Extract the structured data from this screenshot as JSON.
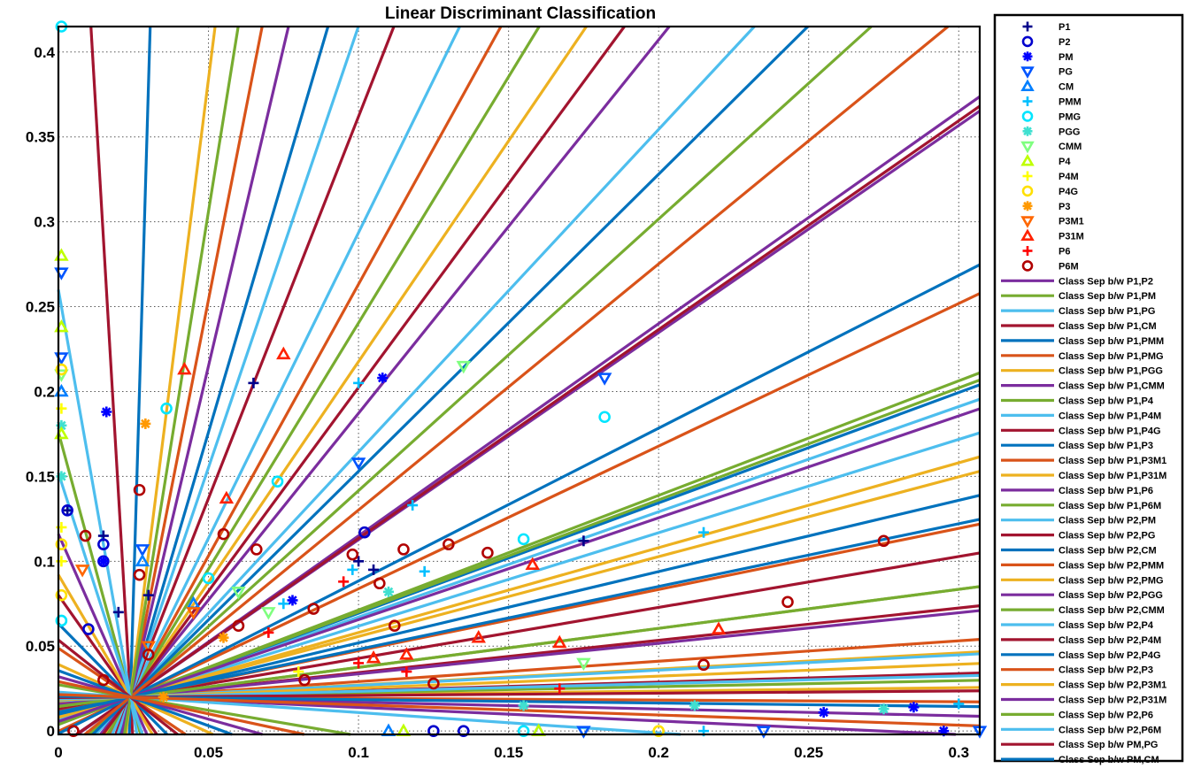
{
  "chart_data": {
    "type": "scatter",
    "title": "Linear Discriminant Classification",
    "xlabel": "",
    "ylabel": "",
    "xlim": [
      0,
      0.307
    ],
    "ylim": [
      -0.002,
      0.415
    ],
    "xticks": [
      "0",
      "0.05",
      "0.1",
      "0.15",
      "0.2",
      "0.25",
      "0.3"
    ],
    "yticks": [
      "0",
      "0.05",
      "0.1",
      "0.15",
      "0.2",
      "0.25",
      "0.3",
      "0.35",
      "0.4"
    ],
    "xtick_values": [
      0,
      0.05,
      0.1,
      0.15,
      0.2,
      0.25,
      0.3
    ],
    "ytick_values": [
      0,
      0.05,
      0.1,
      0.15,
      0.2,
      0.25,
      0.3,
      0.35,
      0.4
    ],
    "grid": true,
    "legend_position": "outside-right",
    "series": [
      {
        "name": "P1",
        "marker": "plus",
        "color": "#00008b",
        "points": [
          [
            0.003,
            0.13
          ],
          [
            0.015,
            0.115
          ],
          [
            0.065,
            0.205
          ],
          [
            0.1,
            0.1
          ],
          [
            0.105,
            0.095
          ],
          [
            0.175,
            0.112
          ],
          [
            0.03,
            0.08
          ],
          [
            0.02,
            0.07
          ]
        ]
      },
      {
        "name": "P2",
        "marker": "circle",
        "color": "#0000cd",
        "points": [
          [
            0.003,
            0.13
          ],
          [
            0.015,
            0.11
          ],
          [
            0.015,
            0.1
          ],
          [
            0.102,
            0.117
          ],
          [
            0.135,
            0.0
          ],
          [
            0.125,
            0.0
          ],
          [
            0.01,
            0.06
          ]
        ]
      },
      {
        "name": "PM",
        "marker": "star",
        "color": "#0000ff",
        "points": [
          [
            0.016,
            0.188
          ],
          [
            0.108,
            0.208
          ],
          [
            0.078,
            0.077
          ],
          [
            0.255,
            0.011
          ],
          [
            0.285,
            0.014
          ],
          [
            0.295,
            0.0
          ],
          [
            0.015,
            0.1
          ]
        ]
      },
      {
        "name": "PG",
        "marker": "triangle-down",
        "color": "#0055ff",
        "points": [
          [
            0.001,
            0.27
          ],
          [
            0.001,
            0.22
          ],
          [
            0.028,
            0.107
          ],
          [
            0.1,
            0.158
          ],
          [
            0.182,
            0.208
          ],
          [
            0.235,
            0.0
          ],
          [
            0.307,
            0.0
          ],
          [
            0.175,
            0.0
          ]
        ]
      },
      {
        "name": "CM",
        "marker": "triangle-up",
        "color": "#007fff",
        "points": [
          [
            0.028,
            0.1
          ],
          [
            0.001,
            0.2
          ],
          [
            0.16,
            0.0
          ],
          [
            0.11,
            0.0
          ],
          [
            0.045,
            0.075
          ]
        ]
      },
      {
        "name": "PMM",
        "marker": "plus",
        "color": "#00bfff",
        "points": [
          [
            0.1,
            0.205
          ],
          [
            0.118,
            0.133
          ],
          [
            0.122,
            0.094
          ],
          [
            0.098,
            0.095
          ],
          [
            0.215,
            0.117
          ],
          [
            0.215,
            0.0
          ],
          [
            0.3,
            0.016
          ],
          [
            0.075,
            0.075
          ]
        ]
      },
      {
        "name": "PMG",
        "marker": "circle",
        "color": "#00e5ff",
        "points": [
          [
            0.001,
            0.415
          ],
          [
            0.036,
            0.19
          ],
          [
            0.073,
            0.147
          ],
          [
            0.155,
            0.113
          ],
          [
            0.182,
            0.185
          ],
          [
            0.155,
            0.0
          ],
          [
            0.001,
            0.065
          ],
          [
            0.05,
            0.09
          ]
        ]
      },
      {
        "name": "PGG",
        "marker": "star",
        "color": "#40e0d0",
        "points": [
          [
            0.001,
            0.18
          ],
          [
            0.001,
            0.15
          ],
          [
            0.275,
            0.013
          ],
          [
            0.212,
            0.015
          ],
          [
            0.155,
            0.015
          ],
          [
            0.11,
            0.082
          ]
        ]
      },
      {
        "name": "CMM",
        "marker": "triangle-down",
        "color": "#7fff7f",
        "points": [
          [
            0.135,
            0.215
          ],
          [
            0.175,
            0.04
          ],
          [
            0.07,
            0.07
          ],
          [
            0.06,
            0.082
          ],
          [
            0.001,
            0.21
          ]
        ]
      },
      {
        "name": "P4",
        "marker": "triangle-up",
        "color": "#bfff00",
        "points": [
          [
            0.001,
            0.28
          ],
          [
            0.001,
            0.238
          ],
          [
            0.001,
            0.175
          ],
          [
            0.115,
            0.0
          ],
          [
            0.16,
            0.0
          ]
        ]
      },
      {
        "name": "P4M",
        "marker": "plus",
        "color": "#ffff00",
        "points": [
          [
            0.001,
            0.19
          ],
          [
            0.001,
            0.12
          ],
          [
            0.001,
            0.1
          ],
          [
            0.08,
            0.035
          ]
        ]
      },
      {
        "name": "P4G",
        "marker": "circle",
        "color": "#ffe000",
        "points": [
          [
            0.001,
            0.213
          ],
          [
            0.001,
            0.11
          ],
          [
            0.001,
            0.08
          ],
          [
            0.2,
            0.0
          ]
        ]
      },
      {
        "name": "P3",
        "marker": "star",
        "color": "#ff9900",
        "points": [
          [
            0.029,
            0.181
          ],
          [
            0.055,
            0.055
          ],
          [
            0.035,
            0.02
          ]
        ]
      },
      {
        "name": "P3M1",
        "marker": "triangle-down",
        "color": "#ff6600",
        "points": [
          [
            0.008,
            0.095
          ],
          [
            0.045,
            0.07
          ],
          [
            0.03,
            0.05
          ]
        ]
      },
      {
        "name": "P31M",
        "marker": "triangle-up",
        "color": "#ff2200",
        "points": [
          [
            0.042,
            0.213
          ],
          [
            0.075,
            0.222
          ],
          [
            0.056,
            0.137
          ],
          [
            0.158,
            0.098
          ],
          [
            0.14,
            0.055
          ],
          [
            0.22,
            0.06
          ],
          [
            0.167,
            0.052
          ],
          [
            0.105,
            0.043
          ],
          [
            0.116,
            0.045
          ]
        ]
      },
      {
        "name": "P6",
        "marker": "plus",
        "color": "#ff0000",
        "points": [
          [
            0.095,
            0.088
          ],
          [
            0.07,
            0.058
          ],
          [
            0.1,
            0.04
          ],
          [
            0.167,
            0.025
          ],
          [
            0.116,
            0.035
          ]
        ]
      },
      {
        "name": "P6M",
        "marker": "circle",
        "color": "#b00000",
        "points": [
          [
            0.027,
            0.142
          ],
          [
            0.055,
            0.116
          ],
          [
            0.066,
            0.107
          ],
          [
            0.098,
            0.104
          ],
          [
            0.107,
            0.087
          ],
          [
            0.115,
            0.107
          ],
          [
            0.13,
            0.11
          ],
          [
            0.143,
            0.105
          ],
          [
            0.215,
            0.039
          ],
          [
            0.243,
            0.076
          ],
          [
            0.275,
            0.112
          ],
          [
            0.027,
            0.092
          ],
          [
            0.085,
            0.072
          ],
          [
            0.06,
            0.062
          ],
          [
            0.03,
            0.045
          ],
          [
            0.015,
            0.03
          ],
          [
            0.005,
            0.0
          ],
          [
            0.125,
            0.028
          ],
          [
            0.082,
            0.03
          ],
          [
            0.112,
            0.062
          ],
          [
            0.009,
            0.115
          ]
        ]
      }
    ],
    "separator_center": [
      0.024,
      0.02
    ],
    "separator_color_cycle": [
      "#7b2d9e",
      "#77ac30",
      "#4dbeee",
      "#a2142f",
      "#0072bd",
      "#d95319",
      "#edb120"
    ],
    "separators": [
      {
        "name": "Class Sep b/w P1,P2",
        "slope": 1.22
      },
      {
        "name": "Class Sep b/w P1,PM",
        "slope": 0.675
      },
      {
        "name": "Class Sep b/w P1,PG",
        "slope": 0.62
      },
      {
        "name": "Class Sep b/w P1,CM",
        "slope": 0.3
      },
      {
        "name": "Class Sep b/w P1,PMM",
        "slope": 0.65
      },
      {
        "name": "Class Sep b/w P1,PMG",
        "slope": 0.84
      },
      {
        "name": "Class Sep b/w P1,PGG",
        "slope": 0.47
      },
      {
        "name": "Class Sep b/w P1,CMM",
        "slope": 1.25
      },
      {
        "name": "Class Sep b/w P1,P4",
        "slope": 0.66
      },
      {
        "name": "Class Sep b/w P1,P4M",
        "slope": 0.55
      },
      {
        "name": "Class Sep b/w P1,P4G",
        "slope": 1.23
      },
      {
        "name": "Class Sep b/w P1,P3",
        "slope": 0.9
      },
      {
        "name": "Class Sep b/w P1,P3M1",
        "slope": 0.36
      },
      {
        "name": "Class Sep b/w P1,P31M",
        "slope": 0.5
      },
      {
        "name": "Class Sep b/w P1,P6",
        "slope": 0.6
      },
      {
        "name": "Class Sep b/w P1,P6M",
        "slope": 0.23
      },
      {
        "name": "Class Sep b/w P2,PM",
        "slope": 1.9
      },
      {
        "name": "Class Sep b/w P2,PG",
        "slope": 0.19
      },
      {
        "name": "Class Sep b/w P2,CM",
        "slope": 0.37
      },
      {
        "name": "Class Sep b/w P2,PMM",
        "slope": 0.12
      },
      {
        "name": "Class Sep b/w P2,PMG",
        "slope": 0.094
      },
      {
        "name": "Class Sep b/w P2,PGG",
        "slope": 0.18
      },
      {
        "name": "Class Sep b/w P2,CMM",
        "slope": 0.23
      },
      {
        "name": "Class Sep b/w P2,P4",
        "slope": 0.09
      },
      {
        "name": "Class Sep b/w P2,P4M",
        "slope": 0.05
      },
      {
        "name": "Class Sep b/w P2,P4G",
        "slope": 0.42
      },
      {
        "name": "Class Sep b/w P2,P3",
        "slope": -0.01
      },
      {
        "name": "Class Sep b/w P2,P3M1",
        "slope": 0.07
      },
      {
        "name": "Class Sep b/w P2,P31M",
        "slope": -0.08
      },
      {
        "name": "Class Sep b/w P2,P6",
        "slope": 1.6
      },
      {
        "name": "Class Sep b/w P2,P6M",
        "slope": -0.12
      },
      {
        "name": "Class Sep b/w PM,PG",
        "slope": -30
      },
      {
        "name": "Class Sep b/w PM,CM",
        "slope": 60
      }
    ],
    "extra_separator_slopes": [
      3.2,
      2.6,
      2.2,
      2.9,
      3.6,
      4.5,
      6.0,
      9.0,
      14.0,
      -4.0,
      -6.5,
      -10.0,
      -2.5,
      -1.8,
      -1.2,
      -0.8,
      -0.5,
      -0.3,
      5.2,
      2.4,
      1.75,
      1.45,
      0.02,
      -0.04,
      0.035,
      0.045,
      0.013,
      -0.02,
      -0.06,
      -3.0,
      7.5,
      11.0,
      -5.5,
      -1.4,
      -0.65,
      -0.38
    ]
  }
}
